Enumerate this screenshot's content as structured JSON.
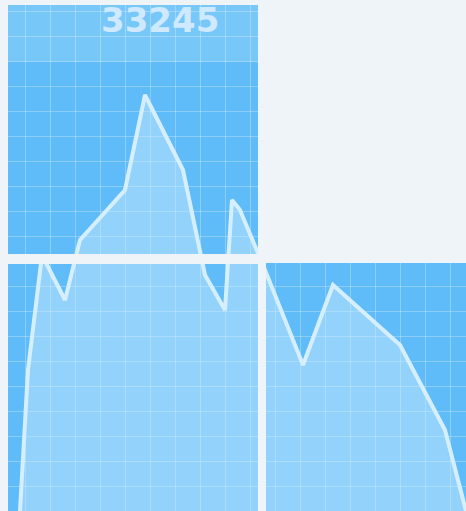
{
  "chart_data": {
    "type": "area",
    "annotations": [
      "33245"
    ],
    "x": [
      20,
      28,
      42,
      65,
      80,
      125,
      145,
      183,
      205,
      225,
      232,
      240,
      265,
      303,
      333,
      400,
      445,
      466
    ],
    "values": [
      0,
      141,
      256,
      211,
      271,
      321,
      416,
      341,
      236,
      201,
      311,
      301,
      241,
      146,
      226,
      166,
      81,
      0
    ],
    "color": "#d6efff",
    "xlim": [
      0,
      466
    ],
    "ylim": [
      0,
      511
    ],
    "xticks": [
      0,
      25,
      50,
      75,
      100,
      125,
      150,
      175,
      200,
      225,
      250,
      275,
      300,
      325,
      350,
      375,
      400,
      425,
      450
    ],
    "yticks": [
      0,
      25,
      50,
      75,
      100,
      125,
      150,
      175,
      200,
      225,
      250,
      275,
      300,
      325,
      350,
      375,
      400,
      425,
      450,
      475,
      500
    ],
    "grid": true,
    "tick_labels": false
  }
}
